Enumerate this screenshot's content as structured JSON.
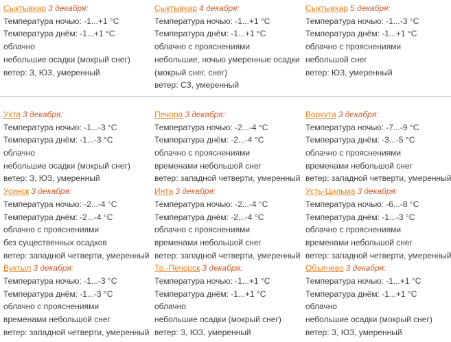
{
  "colors": {
    "city_link": "#e6801e",
    "date_text": "#cd5b2e",
    "body_text": "#3e3e3e",
    "divider": "#cccccc",
    "background": "#ffffff"
  },
  "sections": [
    {
      "blocks": [
        {
          "city": "Сыктывкар",
          "date": "3 декабря:",
          "lines": [
            "Температура ночью: -1...+1 °C",
            "Температура днём: -1...+1 °C",
            "облачно",
            "небольшие осадки (мокрый снег)",
            "ветер: З, ЮЗ, умеренный"
          ]
        },
        {
          "city": "Сыктывкар",
          "date": "4 декабря:",
          "lines": [
            "Температура ночью: -1...+1 °C",
            "Температура днём: -1...+1 °C",
            "облачно с прояснениями",
            "небольшие, ночью умеренные осадки",
            "(мокрый снег, снег)",
            "ветер: СЗ, умеренный"
          ]
        },
        {
          "city": "Сыктывкар",
          "date": "5 декабря:",
          "lines": [
            "Температура ночью: -1...-3 °C",
            "Температура днём: -1...+1 °C",
            "облачно с прояснениями",
            "небольшой снег",
            "ветер: ЮЗ, умеренный"
          ]
        }
      ]
    },
    {
      "blocks": [
        {
          "city": "Ухта",
          "date": "3 декабря:",
          "lines": [
            "Температура ночью: -1...-3 °C",
            "Температура днём: -1...-3 °C",
            "облачно",
            "небольшие осадки (мокрый снег)",
            "ветер: З, ЮЗ, умеренный"
          ]
        },
        {
          "city": "Печора",
          "date": "3 декабря:",
          "lines": [
            "Температура ночью: -2...-4 °C",
            "Температура днём: -2...-4 °C",
            "облачно с прояснениями",
            "временами небольшой снег",
            "ветер: западной четверти, умеренный"
          ]
        },
        {
          "city": "Воркута",
          "date": "3 декабря:",
          "lines": [
            "Температура ночью: -7...-9 °C",
            "Температура днём: -3...-5 °C",
            "облачно с прояснениями",
            "временами небольшой снег",
            "ветер: западной четверти, умеренный"
          ]
        },
        {
          "city": "Усинск",
          "date": "3 декабря:",
          "lines": [
            "Температура ночью: -2...-4 °C",
            "Температура днём: -2...-4 °C",
            "облачно с прояснениями",
            "без существенных осадков",
            "ветер: западной четверти, умеренный"
          ]
        },
        {
          "city": "Инта",
          "date": "3 декабря:",
          "lines": [
            "Температура ночью: -2...-4 °C",
            "Температура днём: -2...-4 °C",
            "облачно с прояснениями",
            "временами небольшой снег",
            "ветер: западной четверти, умеренный"
          ]
        },
        {
          "city": "Усть-Цильма",
          "date": "3 декабря:",
          "lines": [
            "Температура ночью: -6...-8 °C",
            "Температура днём: -1...-3 °C",
            "облачно с прояснениями",
            "временами небольшой снег",
            "ветер: западной четверти, умеренный"
          ]
        },
        {
          "city": "Вуктыл",
          "date": "3 декабря:",
          "lines": [
            "Температура ночью: -1...-3 °C",
            "Температура днём: -1...-3 °C",
            "облачно с прояснениями",
            "временами небольшой снег",
            "ветер: западной четверти, умеренный"
          ]
        },
        {
          "city": "Тр.-Печорск",
          "date": "3 декабря:",
          "lines": [
            "Температура ночью: -1...+1 °C",
            "Температура днём: -1...+1 °C",
            "облачно",
            "небольшие осадки (мокрый снег)",
            "ветер: З, ЮЗ, умеренный"
          ]
        },
        {
          "city": "Объячево",
          "date": "3 декабря:",
          "lines": [
            "Температура ночью: -1...+1 °C",
            "Температура днём: -1...+1 °C",
            "облачно",
            "небольшие осадки (мокрый снег)",
            "ветер: З, ЮЗ, умеренный"
          ]
        }
      ]
    }
  ]
}
